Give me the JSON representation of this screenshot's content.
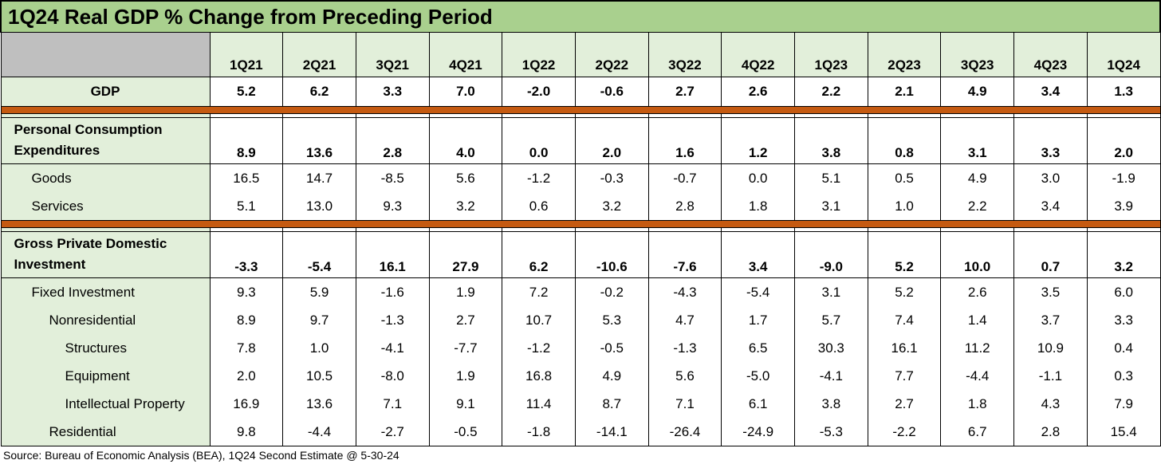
{
  "title": "1Q24 Real GDP % Change from Preceding Period",
  "quarters": [
    "1Q21",
    "2Q21",
    "3Q21",
    "4Q21",
    "1Q22",
    "2Q22",
    "3Q22",
    "4Q22",
    "1Q23",
    "2Q23",
    "3Q23",
    "4Q23",
    "1Q24"
  ],
  "gdp": {
    "label": "GDP",
    "values": [
      "5.2",
      "6.2",
      "3.3",
      "7.0",
      "-2.0",
      "-0.6",
      "2.7",
      "2.6",
      "2.2",
      "2.1",
      "4.9",
      "3.4",
      "1.3"
    ]
  },
  "pce": {
    "label_line1": "Personal Consumption",
    "label_line2": "Expenditures",
    "values": [
      "8.9",
      "13.6",
      "2.8",
      "4.0",
      "0.0",
      "2.0",
      "1.6",
      "1.2",
      "3.8",
      "0.8",
      "3.1",
      "3.3",
      "2.0"
    ],
    "rows": [
      {
        "label": "Goods",
        "values": [
          "16.5",
          "14.7",
          "-8.5",
          "5.6",
          "-1.2",
          "-0.3",
          "-0.7",
          "0.0",
          "5.1",
          "0.5",
          "4.9",
          "3.0",
          "-1.9"
        ]
      },
      {
        "label": "Services",
        "values": [
          "5.1",
          "13.0",
          "9.3",
          "3.2",
          "0.6",
          "3.2",
          "2.8",
          "1.8",
          "3.1",
          "1.0",
          "2.2",
          "3.4",
          "3.9"
        ]
      }
    ]
  },
  "gpdi": {
    "label_line1": "Gross Private Domestic",
    "label_line2": "Investment",
    "values": [
      "-3.3",
      "-5.4",
      "16.1",
      "27.9",
      "6.2",
      "-10.6",
      "-7.6",
      "3.4",
      "-9.0",
      "5.2",
      "10.0",
      "0.7",
      "3.2"
    ],
    "rows": [
      {
        "label": "Fixed Investment",
        "values": [
          "9.3",
          "5.9",
          "-1.6",
          "1.9",
          "7.2",
          "-0.2",
          "-4.3",
          "-5.4",
          "3.1",
          "5.2",
          "2.6",
          "3.5",
          "6.0"
        ]
      },
      {
        "label": "Nonresidential",
        "values": [
          "8.9",
          "9.7",
          "-1.3",
          "2.7",
          "10.7",
          "5.3",
          "4.7",
          "1.7",
          "5.7",
          "7.4",
          "1.4",
          "3.7",
          "3.3"
        ]
      },
      {
        "label": "Structures",
        "values": [
          "7.8",
          "1.0",
          "-4.1",
          "-7.7",
          "-1.2",
          "-0.5",
          "-1.3",
          "6.5",
          "30.3",
          "16.1",
          "11.2",
          "10.9",
          "0.4"
        ]
      },
      {
        "label": "Equipment",
        "values": [
          "2.0",
          "10.5",
          "-8.0",
          "1.9",
          "16.8",
          "4.9",
          "5.6",
          "-5.0",
          "-4.1",
          "7.7",
          "-4.4",
          "-1.1",
          "0.3"
        ]
      },
      {
        "label": "Intellectual Property",
        "values": [
          "16.9",
          "13.6",
          "7.1",
          "9.1",
          "11.4",
          "8.7",
          "7.1",
          "6.1",
          "3.8",
          "2.7",
          "1.8",
          "4.3",
          "7.9"
        ]
      },
      {
        "label": "Residential",
        "values": [
          "9.8",
          "-4.4",
          "-2.7",
          "-0.5",
          "-1.8",
          "-14.1",
          "-26.4",
          "-24.9",
          "-5.3",
          "-2.2",
          "6.7",
          "2.8",
          "15.4"
        ]
      }
    ]
  },
  "source": "Source: Bureau of Economic Analysis (BEA), 1Q24 Second Estimate @ 5-30-24",
  "colors": {
    "header_green": "#a9d08e",
    "label_green": "#e2efda",
    "separator_orange": "#c55a11",
    "corner_gray": "#bfbfbf"
  }
}
